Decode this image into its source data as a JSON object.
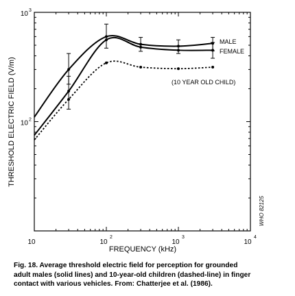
{
  "chart_data": {
    "type": "line",
    "x_scale": "log",
    "y_scale": "log",
    "xlim": [
      10,
      10000
    ],
    "ylim": [
      10,
      1000
    ],
    "xlabel": "FREQUENCY (kHz)",
    "ylabel": "THRESHOLD ELECTRIC FIELD (V/m)",
    "x_ticks": [
      {
        "base": "10",
        "exp": ""
      },
      {
        "base": "10",
        "exp": "2"
      },
      {
        "base": "10",
        "exp": "3"
      },
      {
        "base": "10",
        "exp": "4"
      }
    ],
    "y_ticks": [
      {
        "base": "10",
        "exp": "2"
      },
      {
        "base": "10",
        "exp": "3"
      }
    ],
    "series": [
      {
        "name": "MALE",
        "line": "solid",
        "x": [
          10,
          30,
          100,
          300,
          1000,
          3000
        ],
        "y": [
          110,
          300,
          600,
          510,
          490,
          520
        ],
        "error_low": [
          null,
          220,
          470,
          440,
          420,
          445
        ],
        "error_high": [
          null,
          420,
          780,
          590,
          560,
          590
        ]
      },
      {
        "name": "FEMALE",
        "line": "solid",
        "x": [
          10,
          30,
          100,
          300,
          1000,
          3000
        ],
        "y": [
          75,
          190,
          560,
          480,
          450,
          450
        ],
        "error_low": [
          null,
          130,
          null,
          null,
          null,
          380
        ],
        "error_high": [
          null,
          260,
          null,
          null,
          null,
          530
        ]
      },
      {
        "name": "(10 YEAR OLD CHILD)",
        "line": "dashed",
        "x": [
          10,
          30,
          100,
          300,
          1000,
          3000
        ],
        "y": [
          68,
          160,
          345,
          315,
          305,
          315
        ]
      }
    ],
    "side_note": "WHO 82125",
    "grid": false
  },
  "caption": {
    "line1": "Fig. 18.  Average threshold electric field for perception for grounded",
    "line2": "adult males (solid lines) and 10-year-old children (dashed-line) in finger",
    "line3": "contact with various vehicles.  From:  Chatterjee et al. (1986)."
  }
}
